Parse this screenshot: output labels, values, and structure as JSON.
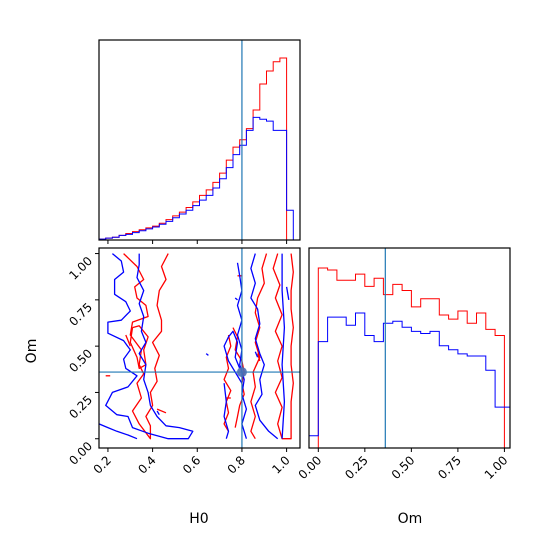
{
  "chart_data": {
    "type": "corner",
    "parameters": [
      "H0",
      "Om"
    ],
    "truth": {
      "H0": 0.8,
      "Om": 0.36
    },
    "colors": {
      "red": "#ff0000",
      "blue": "#0000ff",
      "truth": "#1f77b4"
    },
    "axes": {
      "H0": {
        "label": "H0",
        "lim": [
          0.16,
          1.06
        ],
        "ticks": [
          "0.2",
          "0.4",
          "0.6",
          "0.8",
          "1.0"
        ]
      },
      "Om": {
        "label": "Om",
        "lim": [
          -0.05,
          1.03
        ],
        "ticks": [
          "0.00",
          "0.25",
          "0.50",
          "0.75",
          "1.00"
        ]
      }
    },
    "hist_H0": {
      "bins": [
        0.16,
        0.19,
        0.22,
        0.25,
        0.28,
        0.31,
        0.34,
        0.37,
        0.4,
        0.43,
        0.46,
        0.49,
        0.52,
        0.55,
        0.58,
        0.61,
        0.64,
        0.67,
        0.7,
        0.73,
        0.76,
        0.79,
        0.82,
        0.85,
        0.88,
        0.91,
        0.94,
        0.97,
        1.0,
        1.03,
        1.06
      ],
      "red": [
        1,
        2,
        3,
        5,
        7,
        9,
        11,
        13,
        15,
        18,
        22,
        26,
        30,
        35,
        41,
        48,
        54,
        62,
        72,
        86,
        100,
        108,
        120,
        140,
        168,
        182,
        192,
        196,
        0,
        0
      ],
      "blue": [
        1,
        2,
        3,
        5,
        6,
        8,
        10,
        12,
        14,
        17,
        20,
        24,
        28,
        32,
        37,
        43,
        48,
        56,
        66,
        78,
        92,
        102,
        118,
        132,
        130,
        128,
        118,
        118,
        32,
        0
      ]
    },
    "hist_Om": {
      "bins": [
        -0.05,
        0.0,
        0.05,
        0.1,
        0.15,
        0.2,
        0.25,
        0.3,
        0.35,
        0.4,
        0.45,
        0.5,
        0.55,
        0.6,
        0.65,
        0.7,
        0.75,
        0.8,
        0.85,
        0.9,
        0.95,
        1.0,
        1.03
      ],
      "red": [
        0,
        176,
        174,
        164,
        164,
        170,
        158,
        166,
        150,
        160,
        154,
        138,
        146,
        146,
        130,
        126,
        134,
        122,
        132,
        116,
        110,
        0
      ],
      "blue": [
        12,
        104,
        128,
        128,
        120,
        132,
        110,
        104,
        122,
        124,
        118,
        114,
        112,
        114,
        100,
        96,
        92,
        90,
        90,
        76,
        40,
        40
      ]
    },
    "contours": {
      "red": [
        [
          [
            0.27,
            1.0
          ],
          [
            0.33,
            0.93
          ],
          [
            0.36,
            0.86
          ],
          [
            0.32,
            0.82
          ],
          [
            0.33,
            0.76
          ],
          [
            0.37,
            0.72
          ],
          [
            0.38,
            0.66
          ],
          [
            0.31,
            0.63
          ],
          [
            0.3,
            0.56
          ],
          [
            0.35,
            0.48
          ],
          [
            0.34,
            0.4
          ],
          [
            0.36,
            0.35
          ],
          [
            0.33,
            0.3
          ],
          [
            0.35,
            0.22
          ],
          [
            0.31,
            0.15
          ],
          [
            0.34,
            0.08
          ],
          [
            0.39,
            0.0
          ],
          [
            0.39,
            0.07
          ],
          [
            0.37,
            0.12
          ],
          [
            0.4,
            0.18
          ],
          [
            0.39,
            0.25
          ],
          [
            0.42,
            0.31
          ],
          [
            0.41,
            0.38
          ],
          [
            0.43,
            0.45
          ],
          [
            0.4,
            0.52
          ],
          [
            0.44,
            0.58
          ],
          [
            0.44,
            0.64
          ],
          [
            0.42,
            0.72
          ],
          [
            0.43,
            0.8
          ],
          [
            0.46,
            0.86
          ],
          [
            0.44,
            0.93
          ],
          [
            0.47,
            1.0
          ]
        ],
        [
          [
            0.31,
            0.6
          ],
          [
            0.3,
            0.52
          ],
          [
            0.33,
            0.44
          ],
          [
            0.34,
            0.38
          ],
          [
            0.37,
            0.4
          ],
          [
            0.36,
            0.48
          ],
          [
            0.38,
            0.55
          ],
          [
            0.34,
            0.61
          ],
          [
            0.31,
            0.6
          ]
        ],
        [
          [
            0.96,
            1.0
          ],
          [
            0.94,
            0.92
          ],
          [
            0.97,
            0.83
          ],
          [
            0.95,
            0.76
          ],
          [
            0.98,
            0.67
          ],
          [
            0.95,
            0.58
          ],
          [
            0.98,
            0.5
          ],
          [
            0.96,
            0.42
          ],
          [
            0.98,
            0.33
          ],
          [
            0.95,
            0.25
          ],
          [
            0.98,
            0.17
          ],
          [
            0.96,
            0.08
          ],
          [
            0.98,
            0.0
          ],
          [
            1.02,
            0.0
          ],
          [
            1.02,
            0.1
          ],
          [
            1.02,
            0.2
          ],
          [
            1.03,
            0.3
          ],
          [
            1.02,
            0.4
          ],
          [
            1.02,
            0.5
          ],
          [
            1.03,
            0.6
          ],
          [
            1.02,
            0.7
          ],
          [
            1.02,
            0.8
          ],
          [
            1.03,
            0.9
          ],
          [
            1.02,
            1.0
          ]
        ],
        [
          [
            0.91,
            1.0
          ],
          [
            0.89,
            0.92
          ],
          [
            0.9,
            0.84
          ],
          [
            0.87,
            0.76
          ],
          [
            0.86,
            0.68
          ],
          [
            0.88,
            0.6
          ],
          [
            0.86,
            0.52
          ],
          [
            0.88,
            0.44
          ],
          [
            0.85,
            0.36
          ],
          [
            0.86,
            0.28
          ],
          [
            0.84,
            0.2
          ],
          [
            0.86,
            0.12
          ],
          [
            0.84,
            0.04
          ],
          [
            0.86,
            0.0
          ]
        ],
        [
          [
            0.78,
            0.88
          ],
          [
            0.8,
            0.88
          ]
        ],
        [
          [
            0.76,
            0.6
          ],
          [
            0.78,
            0.55
          ],
          [
            0.77,
            0.48
          ],
          [
            0.8,
            0.42
          ],
          [
            0.81,
            0.36
          ],
          [
            0.8,
            0.3
          ],
          [
            0.81,
            0.24
          ],
          [
            0.79,
            0.18
          ],
          [
            0.78,
            0.12
          ],
          [
            0.77,
            0.06
          ]
        ],
        [
          [
            0.74,
            0.56
          ],
          [
            0.75,
            0.5
          ],
          [
            0.73,
            0.44
          ],
          [
            0.74,
            0.38
          ],
          [
            0.72,
            0.32
          ],
          [
            0.75,
            0.26
          ],
          [
            0.73,
            0.2
          ],
          [
            0.74,
            0.14
          ],
          [
            0.72,
            0.08
          ],
          [
            0.74,
            0.04
          ]
        ],
        [
          [
            0.28,
            0.56
          ],
          [
            0.3,
            0.5
          ]
        ],
        [
          [
            0.19,
            0.34
          ],
          [
            0.21,
            0.34
          ]
        ],
        [
          [
            0.42,
            0.16
          ],
          [
            0.46,
            0.14
          ]
        ],
        [
          [
            0.73,
            0.22
          ],
          [
            0.75,
            0.22
          ]
        ],
        [
          [
            0.87,
            0.46
          ],
          [
            0.88,
            0.42
          ]
        ]
      ],
      "blue": [
        [
          [
            0.22,
            1.0
          ],
          [
            0.26,
            0.96
          ],
          [
            0.27,
            0.9
          ],
          [
            0.23,
            0.86
          ],
          [
            0.23,
            0.78
          ],
          [
            0.28,
            0.74
          ],
          [
            0.3,
            0.69
          ],
          [
            0.26,
            0.64
          ],
          [
            0.2,
            0.63
          ],
          [
            0.2,
            0.57
          ],
          [
            0.27,
            0.53
          ],
          [
            0.3,
            0.48
          ],
          [
            0.27,
            0.43
          ],
          [
            0.28,
            0.38
          ],
          [
            0.33,
            0.34
          ],
          [
            0.29,
            0.28
          ],
          [
            0.22,
            0.25
          ],
          [
            0.19,
            0.18
          ],
          [
            0.24,
            0.13
          ],
          [
            0.29,
            0.12
          ],
          [
            0.31,
            0.06
          ],
          [
            0.38,
            0.03
          ],
          [
            0.47,
            0.0
          ],
          [
            0.56,
            0.0
          ],
          [
            0.58,
            0.04
          ],
          [
            0.52,
            0.06
          ],
          [
            0.46,
            0.07
          ],
          [
            0.42,
            0.12
          ],
          [
            0.39,
            0.18
          ],
          [
            0.38,
            0.25
          ],
          [
            0.36,
            0.32
          ],
          [
            0.37,
            0.4
          ],
          [
            0.34,
            0.46
          ],
          [
            0.37,
            0.52
          ],
          [
            0.35,
            0.58
          ],
          [
            0.36,
            0.66
          ],
          [
            0.34,
            0.73
          ],
          [
            0.36,
            0.8
          ],
          [
            0.33,
            0.87
          ],
          [
            0.34,
            0.94
          ],
          [
            0.34,
            1.0
          ]
        ],
        [
          [
            0.16,
            0.08
          ],
          [
            0.2,
            0.06
          ],
          [
            0.24,
            0.04
          ],
          [
            0.29,
            0.02
          ],
          [
            0.33,
            0.0
          ]
        ],
        [
          [
            0.86,
            1.0
          ],
          [
            0.84,
            0.92
          ],
          [
            0.86,
            0.84
          ],
          [
            0.84,
            0.76
          ],
          [
            0.87,
            0.7
          ],
          [
            0.88,
            0.62
          ],
          [
            0.86,
            0.54
          ],
          [
            0.88,
            0.46
          ],
          [
            0.9,
            0.4
          ],
          [
            0.88,
            0.32
          ],
          [
            0.89,
            0.24
          ],
          [
            0.86,
            0.18
          ],
          [
            0.88,
            0.1
          ],
          [
            0.92,
            0.04
          ],
          [
            0.96,
            0.0
          ]
        ],
        [
          [
            0.78,
            0.95
          ],
          [
            0.79,
            0.88
          ],
          [
            0.8,
            0.8
          ],
          [
            0.78,
            0.72
          ],
          [
            0.8,
            0.64
          ],
          [
            0.78,
            0.56
          ],
          [
            0.8,
            0.48
          ],
          [
            0.79,
            0.4
          ],
          [
            0.81,
            0.32
          ],
          [
            0.8,
            0.24
          ],
          [
            0.82,
            0.16
          ],
          [
            0.8,
            0.08
          ],
          [
            0.82,
            0.0
          ]
        ],
        [
          [
            0.8,
            0.3
          ],
          [
            0.77,
            0.36
          ],
          [
            0.74,
            0.42
          ],
          [
            0.72,
            0.5
          ],
          [
            0.74,
            0.55
          ],
          [
            0.76,
            0.58
          ],
          [
            0.78,
            0.52
          ],
          [
            0.77,
            0.44
          ],
          [
            0.79,
            0.38
          ]
        ],
        [
          [
            0.72,
            0.3
          ],
          [
            0.73,
            0.2
          ],
          [
            0.72,
            0.12
          ],
          [
            0.74,
            0.04
          ],
          [
            0.73,
            0.0
          ]
        ],
        [
          [
            0.98,
            1.0
          ],
          [
            0.98,
            0.8
          ],
          [
            0.99,
            0.6
          ],
          [
            0.98,
            0.4
          ],
          [
            0.99,
            0.2
          ],
          [
            0.98,
            0.0
          ]
        ],
        [
          [
            0.42,
            0.15
          ],
          [
            0.43,
            0.13
          ]
        ],
        [
          [
            0.64,
            0.46
          ],
          [
            0.65,
            0.45
          ]
        ],
        [
          [
            0.77,
            0.76
          ],
          [
            0.78,
            0.75
          ]
        ],
        [
          [
            0.86,
            0.47
          ],
          [
            0.87,
            0.44
          ]
        ],
        [
          [
            1.0,
            0.82
          ],
          [
            1.01,
            0.75
          ]
        ]
      ]
    },
    "dot_color": "#4a6fb5"
  }
}
